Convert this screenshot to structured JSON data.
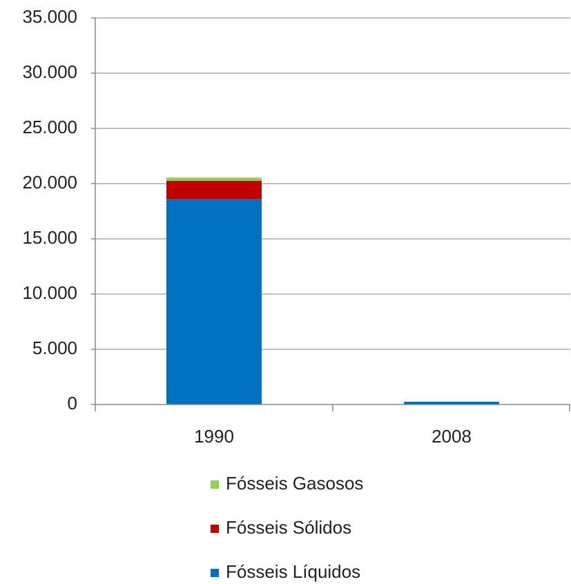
{
  "chart_data": {
    "type": "stacked-bar",
    "categories": [
      "1990",
      "2008"
    ],
    "series": [
      {
        "name": "Fósseis Líquidos",
        "color": "#0070c0",
        "values": [
          18600,
          250
        ]
      },
      {
        "name": "Fósseis Sólidos",
        "color": "#c00000",
        "values": [
          1650,
          0
        ]
      },
      {
        "name": "Fósseis Gasosos",
        "color": "#92d050",
        "values": [
          300,
          0
        ]
      }
    ],
    "ylim": [
      0,
      35000
    ],
    "yticks": [
      0,
      {
        "value": 5000,
        "label": "5.000"
      },
      {
        "value": 10000,
        "label": "10.000"
      },
      {
        "value": 15000,
        "label": "15.000"
      },
      {
        "value": 20000,
        "label": "20.000"
      },
      {
        "value": 25000,
        "label": "25.000"
      },
      {
        "value": 30000,
        "label": "30.000"
      },
      {
        "value": 35000,
        "label": "35.000"
      }
    ],
    "grid": true,
    "legend": "bottom"
  }
}
